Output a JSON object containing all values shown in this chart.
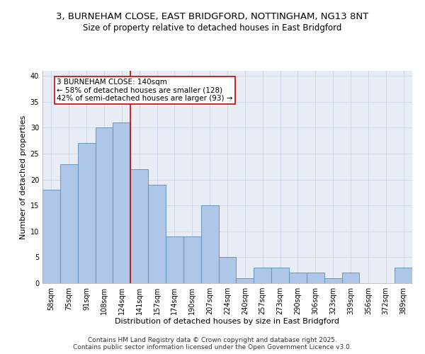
{
  "title_line1": "3, BURNEHAM CLOSE, EAST BRIDGFORD, NOTTINGHAM, NG13 8NT",
  "title_line2": "Size of property relative to detached houses in East Bridgford",
  "xlabel": "Distribution of detached houses by size in East Bridgford",
  "ylabel": "Number of detached properties",
  "categories": [
    "58sqm",
    "75sqm",
    "91sqm",
    "108sqm",
    "124sqm",
    "141sqm",
    "157sqm",
    "174sqm",
    "190sqm",
    "207sqm",
    "224sqm",
    "240sqm",
    "257sqm",
    "273sqm",
    "290sqm",
    "306sqm",
    "323sqm",
    "339sqm",
    "356sqm",
    "372sqm",
    "389sqm"
  ],
  "values": [
    18,
    23,
    27,
    30,
    31,
    22,
    19,
    9,
    9,
    15,
    5,
    1,
    3,
    3,
    2,
    2,
    1,
    2,
    0,
    0,
    3
  ],
  "bar_color": "#aec6e8",
  "bar_edge_color": "#5b8db8",
  "vline_color": "#cc0000",
  "vline_index": 4.5,
  "annotation_text": "3 BURNEHAM CLOSE: 140sqm\n← 58% of detached houses are smaller (128)\n42% of semi-detached houses are larger (93) →",
  "annotation_box_edge": "#cc0000",
  "ylim": [
    0,
    41
  ],
  "yticks": [
    0,
    5,
    10,
    15,
    20,
    25,
    30,
    35,
    40
  ],
  "grid_color": "#c8d4e8",
  "background_color": "#e8edf5",
  "footer_line1": "Contains HM Land Registry data © Crown copyright and database right 2025.",
  "footer_line2": "Contains public sector information licensed under the Open Government Licence v3.0.",
  "title_fontsize": 9.5,
  "subtitle_fontsize": 8.5,
  "axis_label_fontsize": 8,
  "tick_fontsize": 7,
  "annot_fontsize": 7.5,
  "footer_fontsize": 6.5
}
